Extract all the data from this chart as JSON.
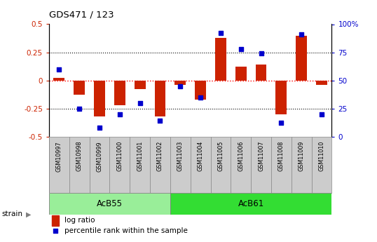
{
  "title": "GDS471 / 123",
  "samples": [
    "GSM10997",
    "GSM10998",
    "GSM10999",
    "GSM11000",
    "GSM11001",
    "GSM11002",
    "GSM11003",
    "GSM11004",
    "GSM11005",
    "GSM11006",
    "GSM11007",
    "GSM11008",
    "GSM11009",
    "GSM11010"
  ],
  "log_ratio": [
    0.02,
    -0.13,
    -0.32,
    -0.22,
    -0.08,
    -0.32,
    -0.04,
    -0.17,
    0.38,
    0.12,
    0.14,
    -0.3,
    0.4,
    -0.04
  ],
  "percentile_rank": [
    60,
    25,
    8,
    20,
    30,
    14,
    45,
    35,
    92,
    78,
    74,
    12,
    91,
    20
  ],
  "groups": [
    {
      "label": "AcB55",
      "start": 0,
      "end": 5,
      "color": "#99ee99"
    },
    {
      "label": "AcB61",
      "start": 6,
      "end": 13,
      "color": "#33dd33"
    }
  ],
  "bar_color": "#cc2200",
  "dot_color": "#0000cc",
  "ylim_left": [
    -0.5,
    0.5
  ],
  "ylim_right": [
    0,
    100
  ],
  "yticks_left": [
    -0.5,
    -0.25,
    0.0,
    0.25,
    0.5
  ],
  "yticks_right": [
    0,
    25,
    50,
    75,
    100
  ],
  "bg_color": "#ffffff",
  "sample_box_color": "#cccccc",
  "dot_size": 22,
  "bar_width": 0.55
}
